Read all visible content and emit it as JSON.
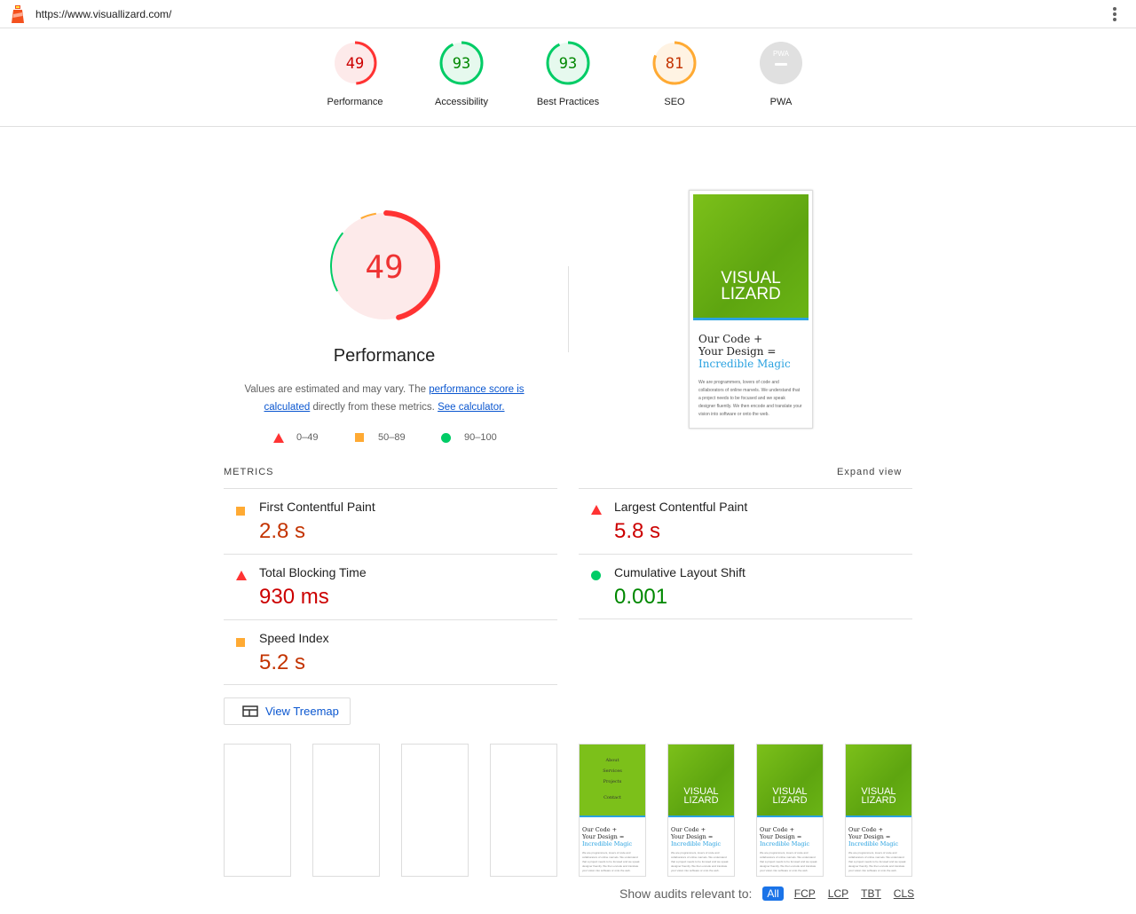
{
  "topbar": {
    "url": "https://www.visuallizard.com/",
    "logo_icon": "lighthouse-icon",
    "menu_icon": "kebab-menu-icon"
  },
  "gauges": [
    {
      "label": "Performance",
      "score": "49",
      "value": 49,
      "color": "#ff3333",
      "bg": "#fdeaea"
    },
    {
      "label": "Accessibility",
      "score": "93",
      "value": 93,
      "color": "#00cc66",
      "bg": "#e6f9ee"
    },
    {
      "label": "Best Practices",
      "score": "93",
      "value": 93,
      "color": "#00cc66",
      "bg": "#e6f9ee"
    },
    {
      "label": "SEO",
      "score": "81",
      "value": 81,
      "color": "#ffaa33",
      "bg": "#fff3e3"
    },
    {
      "label": "PWA",
      "score": "PWA",
      "value": null,
      "color": "#9e9e9e",
      "bg": "#e0e0e0"
    }
  ],
  "main": {
    "score": "49",
    "title": "Performance",
    "desc_pre": "Values are estimated and may vary. The ",
    "desc_link1": "performance score is calculated",
    "desc_mid": " directly from these metrics. ",
    "desc_link2": "See calculator.",
    "legend": [
      "0–49",
      "50–89",
      "90–100"
    ]
  },
  "screenshot": {
    "brand": "VISUAL LIZARD",
    "h1a": "Our Code +",
    "h1b": "Your Design =",
    "h1c": "Incredible Magic",
    "para": "We are programmers, lovers of code and collaborators of online marvels. We understand that a project needs to be focused and we speak designer fluently. We then encode and translate your vision into software or onto the web."
  },
  "metrics": {
    "heading": "METRICS",
    "expand": "Expand view",
    "items": [
      {
        "name": "First Contentful Paint",
        "value": "2.8 s",
        "status": "average",
        "color": "#c33300"
      },
      {
        "name": "Largest Contentful Paint",
        "value": "5.8 s",
        "status": "fail",
        "color": "#cc0000"
      },
      {
        "name": "Total Blocking Time",
        "value": "930 ms",
        "status": "fail",
        "color": "#cc0000"
      },
      {
        "name": "Cumulative Layout Shift",
        "value": "0.001",
        "status": "pass",
        "color": "#008800"
      },
      {
        "name": "Speed Index",
        "value": "5.2 s",
        "status": "average",
        "color": "#c33300"
      }
    ]
  },
  "treemap": {
    "label": "View Treemap",
    "icon": "treemap-icon"
  },
  "filmstrip": {
    "menu": [
      "About",
      "Services",
      "Projects",
      "Contact"
    ]
  },
  "filter": {
    "label": "Show audits relevant to:",
    "chips": [
      "All",
      "FCP",
      "LCP",
      "TBT",
      "CLS"
    ]
  }
}
